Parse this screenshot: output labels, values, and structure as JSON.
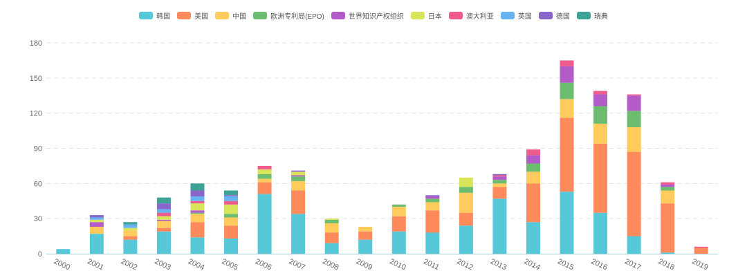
{
  "chart_data": {
    "type": "bar",
    "stacked": true,
    "categories": [
      "2000",
      "2001",
      "2002",
      "2003",
      "2004",
      "2005",
      "2006",
      "2007",
      "2008",
      "2009",
      "2010",
      "2011",
      "2012",
      "2013",
      "2014",
      "2015",
      "2016",
      "2017",
      "2018",
      "2019"
    ],
    "ylim": [
      0,
      180
    ],
    "yticks": [
      0,
      30,
      60,
      90,
      120,
      150,
      180
    ],
    "grid": true,
    "legend_position": "top-center",
    "series": [
      {
        "name": "韩国",
        "color": "#56c8d8",
        "values": [
          4,
          17,
          12,
          19,
          14,
          13,
          51,
          34,
          9,
          12,
          19,
          18,
          24,
          47,
          27,
          53,
          35,
          15,
          1,
          0
        ]
      },
      {
        "name": "美国",
        "color": "#ff8a5c",
        "values": [
          0,
          0,
          3,
          3,
          13,
          11,
          10,
          20,
          9,
          7,
          13,
          19,
          11,
          10,
          33,
          63,
          59,
          72,
          42,
          5
        ]
      },
      {
        "name": "中国",
        "color": "#ffcb5c",
        "values": [
          0,
          6,
          5,
          6,
          7,
          7,
          3,
          8,
          8,
          4,
          8,
          7,
          17,
          3,
          10,
          16,
          17,
          21,
          11,
          0
        ]
      },
      {
        "name": "欧洲专利局(EPO)",
        "color": "#6dbd70",
        "values": [
          0,
          0,
          0,
          0,
          1,
          3,
          4,
          4,
          3,
          0,
          2,
          3,
          5,
          3,
          7,
          14,
          15,
          14,
          3,
          0
        ]
      },
      {
        "name": "世界知识产权组织",
        "color": "#b35cc9",
        "values": [
          0,
          4,
          0,
          1,
          2,
          0,
          0,
          1,
          0,
          0,
          0,
          2,
          0,
          3,
          7,
          14,
          10,
          13,
          2,
          0
        ]
      },
      {
        "name": "日本",
        "color": "#d8e45a",
        "values": [
          0,
          2,
          2,
          3,
          6,
          8,
          4,
          3,
          1,
          0,
          0,
          0,
          8,
          0,
          0,
          0,
          0,
          0,
          0,
          0
        ]
      },
      {
        "name": "澳大利亚",
        "color": "#ef5b8d",
        "values": [
          0,
          0,
          0,
          3,
          2,
          3,
          3,
          0,
          0,
          0,
          0,
          0,
          0,
          1,
          5,
          5,
          3,
          1,
          2,
          1
        ]
      },
      {
        "name": "英国",
        "color": "#66b3f0",
        "values": [
          0,
          2,
          3,
          3,
          4,
          4,
          0,
          0,
          0,
          0,
          0,
          0,
          0,
          0,
          0,
          0,
          0,
          0,
          0,
          0
        ]
      },
      {
        "name": "德国",
        "color": "#8965cc",
        "values": [
          0,
          2,
          0,
          5,
          5,
          1,
          0,
          1,
          0,
          0,
          0,
          1,
          0,
          1,
          0,
          0,
          0,
          0,
          0,
          0
        ]
      },
      {
        "name": "瑞典",
        "color": "#3da396",
        "values": [
          0,
          0,
          2,
          5,
          6,
          4,
          0,
          0,
          0,
          0,
          0,
          0,
          0,
          0,
          0,
          0,
          0,
          0,
          0,
          0
        ]
      }
    ]
  }
}
